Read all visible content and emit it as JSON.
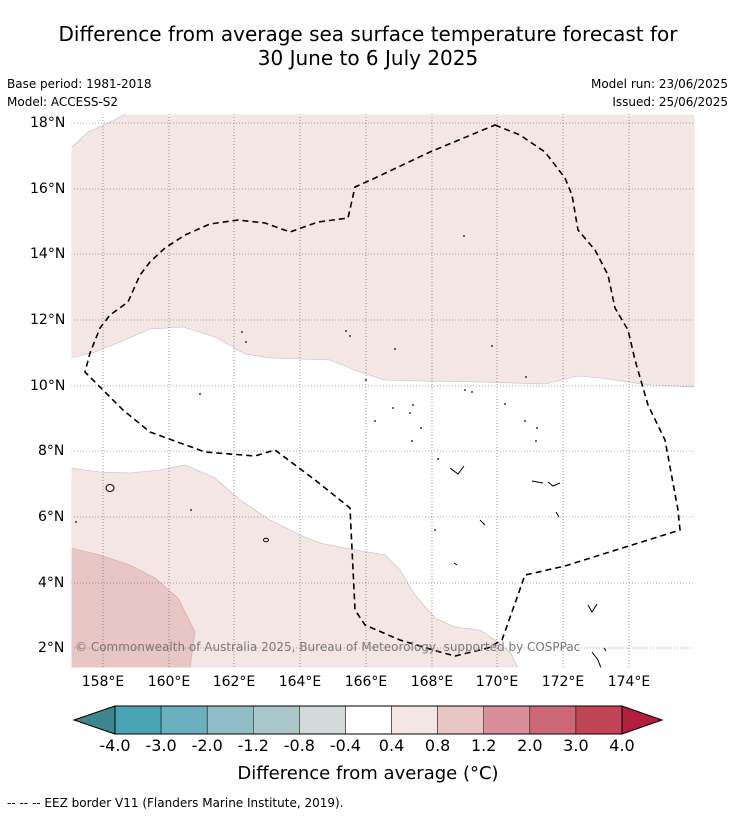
{
  "title_line1": "Difference from average sea surface temperature forecast for",
  "title_line2": "30 June to 6 July 2025",
  "meta": {
    "base_period": "Base period: 1981-2018",
    "model": "Model: ACCESS-S2",
    "model_run": "Model run: 23/06/2025",
    "issued": "Issued: 25/06/2025"
  },
  "lat_labels": [
    "18°N",
    "16°N",
    "14°N",
    "12°N",
    "10°N",
    "8°N",
    "6°N",
    "4°N",
    "2°N"
  ],
  "lon_labels": [
    "158°E",
    "160°E",
    "162°E",
    "164°E",
    "166°E",
    "168°E",
    "170°E",
    "172°E",
    "174°E"
  ],
  "colorbar": {
    "labels": [
      "-4.0",
      "-3.0",
      "-2.0",
      "-1.2",
      "-0.8",
      "-0.4",
      "0.4",
      "0.8",
      "1.2",
      "2.0",
      "3.0",
      "4.0"
    ],
    "colors": [
      "#4aa3b5",
      "#6cb0c0",
      "#8fbdc7",
      "#aac8cc",
      "#d3d9d9",
      "#ffffff",
      "#f4e6e5",
      "#e8c6c3",
      "#d98f98",
      "#cc6876",
      "#c04456"
    ],
    "under_color": "#3b868f",
    "over_color": "#b31d3e",
    "title": "Difference from average (°C)"
  },
  "copyright": "© Commonwealth of Australia 2025, Bureau of Meteorology, supported by COSPPac",
  "footnote": "--  --  -- EEZ border V11 (Flanders Marine Institute, 2019)."
}
